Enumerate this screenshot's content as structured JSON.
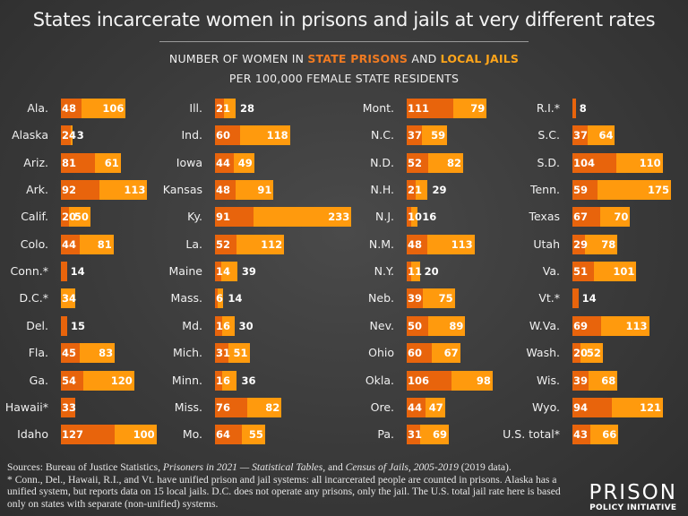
{
  "chart_data": {
    "type": "bar",
    "orientation": "horizontal",
    "stacked": true,
    "title": "States incarcerate women in prisons and jails at very different rates",
    "subtitle_parts": [
      "NUMBER OF WOMEN IN ",
      "STATE PRISONS",
      " AND ",
      "LOCAL JAILS"
    ],
    "subtitle2": "PER 100,000 FEMALE STATE RESIDENTS",
    "colors": {
      "prison": "#e8640c",
      "jail": "#ff9a0d"
    },
    "series_names": [
      "STATE PRISONS",
      "LOCAL JAILS"
    ],
    "columns": [
      [
        {
          "state": "Ala.",
          "prison": 48,
          "jail": 106
        },
        {
          "state": "Alaska",
          "prison": 24,
          "jail": 3
        },
        {
          "state": "Ariz.",
          "prison": 81,
          "jail": 61
        },
        {
          "state": "Ark.",
          "prison": 92,
          "jail": 113
        },
        {
          "state": "Calif.",
          "prison": 20,
          "jail": 50
        },
        {
          "state": "Colo.",
          "prison": 44,
          "jail": 81
        },
        {
          "state": "Conn.*",
          "prison": 14,
          "jail": null
        },
        {
          "state": "D.C.*",
          "prison": null,
          "jail": 34
        },
        {
          "state": "Del.",
          "prison": 15,
          "jail": null
        },
        {
          "state": "Fla.",
          "prison": 45,
          "jail": 83
        },
        {
          "state": "Ga.",
          "prison": 54,
          "jail": 120
        },
        {
          "state": "Hawaii*",
          "prison": 33,
          "jail": null
        },
        {
          "state": "Idaho",
          "prison": 127,
          "jail": 100
        }
      ],
      [
        {
          "state": "Ill.",
          "prison": 21,
          "jail": 28
        },
        {
          "state": "Ind.",
          "prison": 60,
          "jail": 118
        },
        {
          "state": "Iowa",
          "prison": 44,
          "jail": 49
        },
        {
          "state": "Kansas",
          "prison": 48,
          "jail": 91
        },
        {
          "state": "Ky.",
          "prison": 91,
          "jail": 233
        },
        {
          "state": "La.",
          "prison": 52,
          "jail": 112
        },
        {
          "state": "Maine",
          "prison": 14,
          "jail": 39
        },
        {
          "state": "Mass.",
          "prison": 6,
          "jail": 14
        },
        {
          "state": "Md.",
          "prison": 16,
          "jail": 30
        },
        {
          "state": "Mich.",
          "prison": 31,
          "jail": 51
        },
        {
          "state": "Minn.",
          "prison": 16,
          "jail": 36
        },
        {
          "state": "Miss.",
          "prison": 76,
          "jail": 82
        },
        {
          "state": "Mo.",
          "prison": 64,
          "jail": 55
        }
      ],
      [
        {
          "state": "Mont.",
          "prison": 111,
          "jail": 79
        },
        {
          "state": "N.C.",
          "prison": 37,
          "jail": 59
        },
        {
          "state": "N.D.",
          "prison": 52,
          "jail": 82
        },
        {
          "state": "N.H.",
          "prison": 21,
          "jail": 29
        },
        {
          "state": "N.J.",
          "prison": 10,
          "jail": 16
        },
        {
          "state": "N.M.",
          "prison": 48,
          "jail": 113
        },
        {
          "state": "N.Y.",
          "prison": 11,
          "jail": 20
        },
        {
          "state": "Neb.",
          "prison": 39,
          "jail": 75
        },
        {
          "state": "Nev.",
          "prison": 50,
          "jail": 89
        },
        {
          "state": "Ohio",
          "prison": 60,
          "jail": 67
        },
        {
          "state": "Okla.",
          "prison": 106,
          "jail": 98
        },
        {
          "state": "Ore.",
          "prison": 44,
          "jail": 47
        },
        {
          "state": "Pa.",
          "prison": 31,
          "jail": 69
        }
      ],
      [
        {
          "state": "R.I.*",
          "prison": 8,
          "jail": null
        },
        {
          "state": "S.C.",
          "prison": 37,
          "jail": 64
        },
        {
          "state": "S.D.",
          "prison": 104,
          "jail": 110
        },
        {
          "state": "Tenn.",
          "prison": 59,
          "jail": 175
        },
        {
          "state": "Texas",
          "prison": 67,
          "jail": 70
        },
        {
          "state": "Utah",
          "prison": 29,
          "jail": 78
        },
        {
          "state": "Va.",
          "prison": 51,
          "jail": 101
        },
        {
          "state": "Vt.*",
          "prison": 14,
          "jail": null
        },
        {
          "state": "W.Va.",
          "prison": 69,
          "jail": 113
        },
        {
          "state": "Wash.",
          "prison": 20,
          "jail": 52
        },
        {
          "state": "Wis.",
          "prison": 39,
          "jail": 68
        },
        {
          "state": "Wyo.",
          "prison": 94,
          "jail": 121
        },
        {
          "state": "U.S. total*",
          "prison": 43,
          "jail": 66
        }
      ]
    ]
  },
  "footnotes": {
    "line1_a": "Sources: Bureau of Justice Statistics, ",
    "line1_b": "Prisoners in 2021 — Statistical Tables",
    "line1_c": ", and ",
    "line1_d": "Census of Jails, 2005-2019",
    "line1_e": " (2019 data).",
    "rest": "* Conn., Del., Hawaii, R.I., and Vt. have unified prison and jail systems: all incarcerated people are counted in prisons. Alaska has a unified system, but reports data on 15 local jails. D.C. does not operate any prisons, only the jail. The U.S. total jail rate here is based only on states with separate (non-unified) systems."
  },
  "logo": {
    "line1": "PRISON",
    "line2": "POLICY INITIATIVE"
  }
}
